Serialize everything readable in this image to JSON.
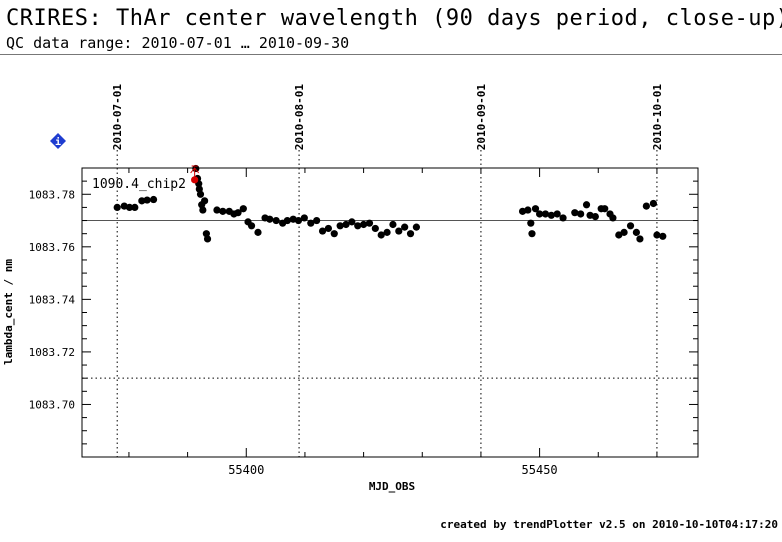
{
  "header": {
    "title": "CRIRES: ThAr center wavelength (90 days period, close-up)",
    "subtitle": "QC data range: 2010-07-01 … 2010-09-30"
  },
  "footer": {
    "text": "created by trendPlotter v2.5 on 2010-10-10T04:17:20"
  },
  "info_icon": "info-diamond-icon",
  "colors": {
    "points": "#000000",
    "highlight": "#d40000",
    "info_icon": "#1e3cd0",
    "axes": "#000000"
  },
  "chart_data": {
    "type": "scatter",
    "title": "",
    "xlabel": "MJD_OBS",
    "ylabel": "lambda_cent / nm",
    "xlim": [
      55372.0,
      55477.0
    ],
    "ylim": [
      1083.68,
      1083.79
    ],
    "xticks": [
      55400,
      55450
    ],
    "yticks": [
      1083.7,
      1083.72,
      1083.74,
      1083.76,
      1083.78
    ],
    "ytick_labels": [
      "1083.70",
      "1083.72",
      "1083.74",
      "1083.76",
      "1083.78"
    ],
    "date_markers": [
      {
        "label": "2010-07-01",
        "mjd": 55378
      },
      {
        "label": "2010-08-01",
        "mjd": 55409
      },
      {
        "label": "2010-09-01",
        "mjd": 55440
      },
      {
        "label": "2010-10-01",
        "mjd": 55470
      }
    ],
    "reference_line": 1083.77,
    "limit_lines": [
      1083.79,
      1083.71
    ],
    "grid": false,
    "series": [
      {
        "name": "1090.4_chip2",
        "x": [
          55378.0,
          55379.2,
          55380.1,
          55381.0,
          55382.2,
          55383.1,
          55384.2,
          55391.4,
          55391.7,
          55391.9,
          55392.0,
          55392.2,
          55392.4,
          55392.6,
          55392.9,
          55393.2,
          55393.4,
          55395.0,
          55396.0,
          55397.1,
          55397.9,
          55398.6,
          55399.5,
          55400.3,
          55400.9,
          55402.0,
          55403.2,
          55404.0,
          55405.1,
          55406.2,
          55407.0,
          55408.0,
          55408.9,
          55409.9,
          55411.0,
          55412.0,
          55413.0,
          55414.0,
          55415.0,
          55416.0,
          55417.0,
          55418.0,
          55419.0,
          55420.0,
          55421.0,
          55422.0,
          55423.0,
          55424.0,
          55425.0,
          55426.0,
          55427.0,
          55428.0,
          55429.0,
          55447.1,
          55448.0,
          55448.5,
          55448.7,
          55449.3,
          55450.0,
          55451.0,
          55452.0,
          55453.0,
          55454.0,
          55456.0,
          55457.0,
          55458.0,
          55458.6,
          55459.5,
          55460.5,
          55461.1,
          55462.0,
          55462.5,
          55463.5,
          55464.4,
          55465.5,
          55466.5,
          55467.1,
          55468.2,
          55469.4,
          55470.0,
          55471.0
        ],
        "y": [
          1083.775,
          1083.7755,
          1083.775,
          1083.775,
          1083.7775,
          1083.7778,
          1083.778,
          1083.7898,
          1083.786,
          1083.784,
          1083.782,
          1083.78,
          1083.776,
          1083.774,
          1083.7775,
          1083.765,
          1083.763,
          1083.774,
          1083.7735,
          1083.7735,
          1083.7725,
          1083.773,
          1083.7745,
          1083.7695,
          1083.768,
          1083.7655,
          1083.771,
          1083.7705,
          1083.77,
          1083.769,
          1083.77,
          1083.7705,
          1083.77,
          1083.771,
          1083.769,
          1083.77,
          1083.766,
          1083.767,
          1083.765,
          1083.768,
          1083.7685,
          1083.7695,
          1083.768,
          1083.7685,
          1083.769,
          1083.767,
          1083.7645,
          1083.7655,
          1083.7685,
          1083.766,
          1083.7675,
          1083.765,
          1083.7675,
          1083.7735,
          1083.774,
          1083.769,
          1083.765,
          1083.7745,
          1083.7725,
          1083.7725,
          1083.772,
          1083.7725,
          1083.771,
          1083.773,
          1083.7725,
          1083.776,
          1083.772,
          1083.7715,
          1083.7745,
          1083.7745,
          1083.7725,
          1083.771,
          1083.7645,
          1083.7655,
          1083.768,
          1083.7655,
          1083.763,
          1083.7755,
          1083.7765,
          1083.7645,
          1083.764
        ]
      }
    ],
    "highlighted_points": [
      {
        "x": 55391.2,
        "y": 1083.7855
      }
    ],
    "arrow": {
      "x": 55391.2,
      "y_from": 1083.786,
      "y_to": 1083.79
    }
  }
}
